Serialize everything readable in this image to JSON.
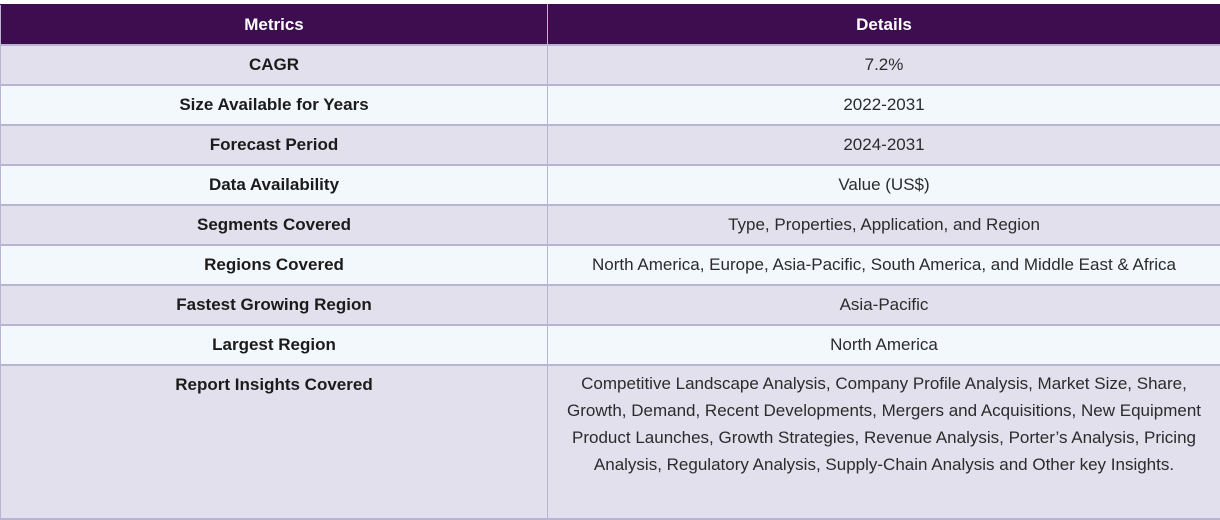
{
  "header": {
    "metrics_label": "Metrics",
    "details_label": "Details"
  },
  "rows": [
    {
      "metric": "CAGR",
      "detail": "7.2%"
    },
    {
      "metric": "Size Available for Years",
      "detail": "2022-2031"
    },
    {
      "metric": "Forecast Period",
      "detail": "2024-2031"
    },
    {
      "metric": "Data Availability",
      "detail": "Value (US$)"
    },
    {
      "metric": "Segments Covered",
      "detail": "Type, Properties, Application, and Region"
    },
    {
      "metric": "Regions Covered",
      "detail": "North America, Europe, Asia-Pacific, South America, and Middle East & Africa"
    },
    {
      "metric": "Fastest Growing Region",
      "detail": "Asia-Pacific"
    },
    {
      "metric": "Largest Region",
      "detail": "North America"
    },
    {
      "metric": "Report Insights Covered",
      "detail": "Competitive Landscape Analysis, Company Profile Analysis, Market Size, Share, Growth, Demand, Recent Developments, Mergers and Acquisitions, New Equipment Product Launches, Growth Strategies, Revenue Analysis, Porter’s Analysis, Pricing Analysis, Regulatory Analysis, Supply-Chain Analysis and Other key Insights."
    }
  ],
  "colors": {
    "header_bg": "#3d0d4f",
    "row_odd_bg": "#e3e0ed",
    "row_even_bg": "#f3f8fc",
    "border": "#b9b4cf"
  }
}
